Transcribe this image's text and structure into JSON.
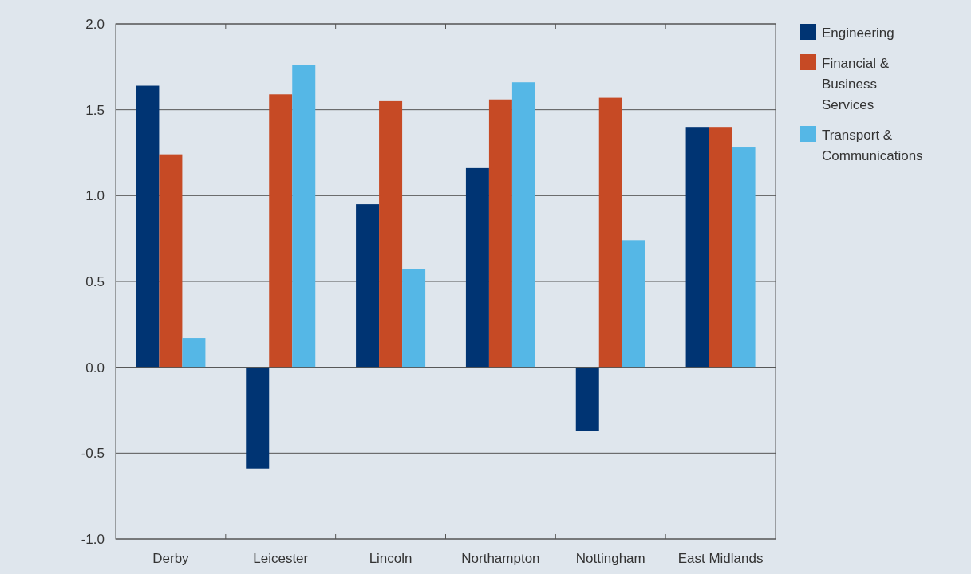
{
  "chart_data": {
    "type": "bar",
    "categories": [
      "Derby",
      "Leicester",
      "Lincoln",
      "Northampton",
      "Nottingham",
      "East Midlands"
    ],
    "series": [
      {
        "name": "Engineering",
        "color": "#003473",
        "values": [
          1.64,
          -0.59,
          0.95,
          1.16,
          -0.37,
          1.4
        ]
      },
      {
        "name": "Financial & Business Services",
        "color": "#c64a25",
        "values": [
          1.24,
          1.59,
          1.55,
          1.56,
          1.57,
          1.4
        ]
      },
      {
        "name": "Transport & Communications",
        "color": "#55b7e6",
        "values": [
          0.17,
          1.76,
          0.57,
          1.66,
          0.74,
          1.28
        ]
      }
    ],
    "ylim": [
      -1,
      2
    ],
    "yticks": [
      {
        "value": -1,
        "label": "-1.0"
      },
      {
        "value": -0.5,
        "label": "-0.5"
      },
      {
        "value": 0,
        "label": "0.0"
      },
      {
        "value": 0.5,
        "label": "0.5"
      },
      {
        "value": 1,
        "label": "1.0"
      },
      {
        "value": 1.5,
        "label": "1.5"
      },
      {
        "value": 2,
        "label": "2.0"
      }
    ],
    "grid": "y",
    "legend": "top right"
  }
}
